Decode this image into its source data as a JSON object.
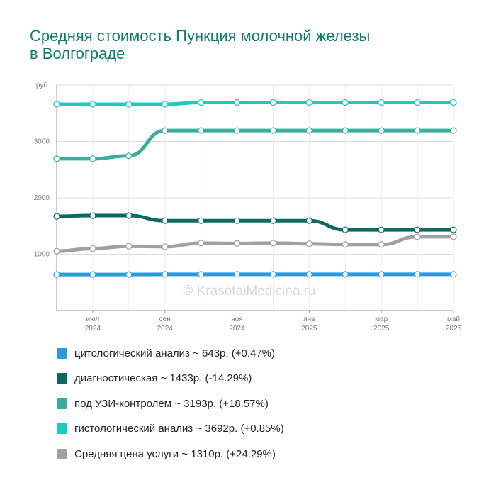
{
  "title": {
    "line1": "Средняя стоимость Пункция молочной железы",
    "line2": "в Волгограде"
  },
  "watermark": "© KrasotaiMedicina.ru",
  "chart_data": {
    "type": "line",
    "y_unit_label": "руб.",
    "ylim": [
      0,
      4000
    ],
    "y_ticks": [
      1000,
      2000,
      3000
    ],
    "grid": true,
    "x_count": 12,
    "x_tick_labels": [
      {
        "index": 1,
        "month": "июл",
        "year": "2024"
      },
      {
        "index": 3,
        "month": "сен",
        "year": "2024"
      },
      {
        "index": 5,
        "month": "ноя",
        "year": "2024"
      },
      {
        "index": 7,
        "month": "янв",
        "year": "2025"
      },
      {
        "index": 9,
        "month": "мар",
        "year": "2025"
      },
      {
        "index": 11,
        "month": "май",
        "year": "2025"
      }
    ],
    "series": [
      {
        "name": "цитологический анализ",
        "color": "#2b9be0",
        "values": [
          640,
          640,
          640,
          643,
          643,
          643,
          643,
          643,
          643,
          643,
          643,
          643
        ]
      },
      {
        "name": "диагностическая",
        "color": "#0b6b63",
        "values": [
          1672,
          1685,
          1685,
          1595,
          1595,
          1595,
          1595,
          1595,
          1433,
          1433,
          1433,
          1433
        ]
      },
      {
        "name": "под УЗИ-контролем",
        "color": "#3aada0",
        "values": [
          2693,
          2693,
          2745,
          3193,
          3193,
          3193,
          3193,
          3193,
          3193,
          3193,
          3193,
          3193
        ]
      },
      {
        "name": "гистологический анализ",
        "color": "#1ccac0",
        "values": [
          3661,
          3661,
          3661,
          3661,
          3692,
          3692,
          3692,
          3692,
          3692,
          3692,
          3692,
          3692
        ]
      },
      {
        "name": "Средняя цена услуги",
        "color": "#a0a0a0",
        "values": [
          1054,
          1100,
          1142,
          1134,
          1197,
          1190,
          1197,
          1186,
          1173,
          1173,
          1310,
          1310
        ]
      }
    ]
  },
  "legend": [
    {
      "label": "цитологический анализ ~ 643р. (+0.47%)",
      "color": "#2b9be0"
    },
    {
      "label": "диагностическая ~ 1433р. (-14.29%)",
      "color": "#0b6b63"
    },
    {
      "label": "под УЗИ-контролем ~ 3193р. (+18.57%)",
      "color": "#3aada0"
    },
    {
      "label": "гистологический анализ ~ 3692р. (+0.85%)",
      "color": "#1ccac0"
    },
    {
      "label": "Средняя цена услуги ~ 1310р. (+24.29%)",
      "color": "#a0a0a0"
    }
  ]
}
